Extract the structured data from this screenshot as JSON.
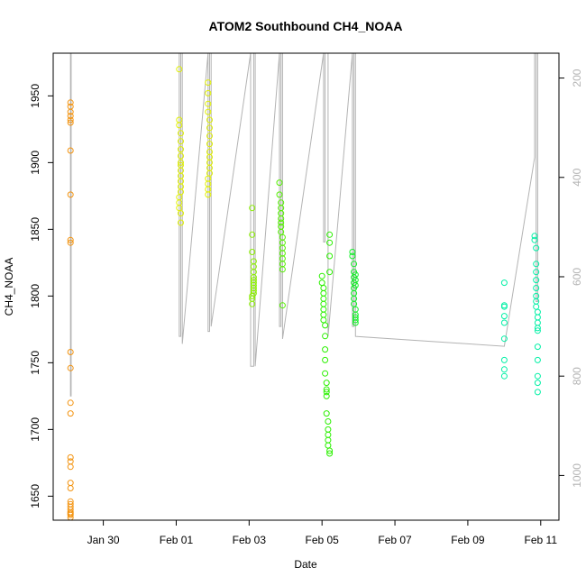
{
  "chart_data": {
    "type": "scatter",
    "title": "ATOM2 Southbound CH4_NOAA",
    "xlabel": "Date",
    "ylabel": "CH4_NOAA",
    "xlim": [
      "2017-01-28T15:00",
      "2017-02-11T12:00"
    ],
    "ylim": [
      1632,
      1982
    ],
    "y2lim": [
      1090,
      150
    ],
    "x_ticks": [
      {
        "date": "2017-01-30",
        "label": "Jan 30"
      },
      {
        "date": "2017-02-01",
        "label": "Feb 01"
      },
      {
        "date": "2017-02-03",
        "label": "Feb 03"
      },
      {
        "date": "2017-02-05",
        "label": "Feb 05"
      },
      {
        "date": "2017-02-07",
        "label": "Feb 07"
      },
      {
        "date": "2017-02-09",
        "label": "Feb 09"
      },
      {
        "date": "2017-02-11",
        "label": "Feb 11"
      }
    ],
    "y_ticks": [
      1650,
      1700,
      1750,
      1800,
      1850,
      1900,
      1950
    ],
    "y2_ticks": [
      200,
      400,
      600,
      800,
      1000
    ],
    "grid": false,
    "legend": "none",
    "pressure_line_color": "#b3b3b3",
    "series": [
      {
        "color": "#f3930f",
        "x": [
          "2017-01-29T02:24",
          "2017-01-29T02:24",
          "2017-01-29T02:24",
          "2017-01-29T02:24",
          "2017-01-29T02:24",
          "2017-01-29T02:24",
          "2017-01-29T02:24",
          "2017-01-29T02:24",
          "2017-01-29T02:24",
          "2017-01-29T02:24",
          "2017-01-29T02:24",
          "2017-01-29T02:24",
          "2017-01-29T02:24",
          "2017-01-29T02:24",
          "2017-01-29T02:24",
          "2017-01-29T02:24",
          "2017-01-29T02:24",
          "2017-01-29T02:24",
          "2017-01-29T02:24",
          "2017-01-29T02:24",
          "2017-01-29T02:24",
          "2017-01-29T02:24",
          "2017-01-29T02:24",
          "2017-01-29T02:24",
          "2017-01-29T02:24",
          "2017-01-29T02:24",
          "2017-01-29T02:24"
        ],
        "y": [
          1945,
          1942,
          1938,
          1935,
          1932,
          1930,
          1909,
          1876,
          1842,
          1840,
          1758,
          1746,
          1720,
          1712,
          1679,
          1676,
          1672,
          1660,
          1656,
          1646,
          1644,
          1642,
          1640,
          1638,
          1637,
          1636,
          1634
        ]
      },
      {
        "color": "#e0f000",
        "x": [
          "2017-02-01T02:00",
          "2017-02-01T02:00",
          "2017-02-01T02:00",
          "2017-02-01T03:00",
          "2017-02-01T03:00",
          "2017-02-01T03:00",
          "2017-02-01T03:00",
          "2017-02-01T03:00",
          "2017-02-01T03:00",
          "2017-02-01T03:00",
          "2017-02-01T03:00",
          "2017-02-01T03:00",
          "2017-02-01T03:00",
          "2017-02-01T03:00",
          "2017-02-01T02:00",
          "2017-02-01T02:00",
          "2017-02-01T02:00",
          "2017-02-01T03:00",
          "2017-02-01T03:00"
        ],
        "y": [
          1970,
          1932,
          1928,
          1922,
          1916,
          1910,
          1905,
          1900,
          1898,
          1894,
          1890,
          1886,
          1882,
          1878,
          1874,
          1870,
          1866,
          1862,
          1855
        ]
      },
      {
        "color": "#e0f000",
        "x": [
          "2017-02-01T21:00",
          "2017-02-01T21:00",
          "2017-02-01T21:00",
          "2017-02-01T21:00",
          "2017-02-01T22:00",
          "2017-02-01T22:00",
          "2017-02-01T22:00",
          "2017-02-01T22:00",
          "2017-02-01T22:00",
          "2017-02-01T22:00",
          "2017-02-01T22:00",
          "2017-02-01T22:00",
          "2017-02-01T22:00",
          "2017-02-01T21:00",
          "2017-02-01T21:00",
          "2017-02-01T21:00",
          "2017-02-01T21:00"
        ],
        "y": [
          1960,
          1952,
          1944,
          1938,
          1932,
          1926,
          1920,
          1914,
          1908,
          1904,
          1900,
          1896,
          1892,
          1888,
          1884,
          1880,
          1876
        ]
      },
      {
        "color": "#8bf000",
        "x": [
          "2017-02-03T02:00",
          "2017-02-03T02:00",
          "2017-02-03T02:00",
          "2017-02-03T03:00",
          "2017-02-03T03:00",
          "2017-02-03T03:00",
          "2017-02-03T03:00",
          "2017-02-03T03:00",
          "2017-02-03T03:00",
          "2017-02-03T03:00",
          "2017-02-03T03:00",
          "2017-02-03T03:00",
          "2017-02-03T03:00",
          "2017-02-03T02:00",
          "2017-02-03T02:00",
          "2017-02-03T02:00"
        ],
        "y": [
          1866,
          1846,
          1833,
          1826,
          1822,
          1818,
          1814,
          1812,
          1810,
          1808,
          1806,
          1804,
          1802,
          1800,
          1798,
          1794
        ]
      },
      {
        "color": "#54f000",
        "x": [
          "2017-02-03T20:00",
          "2017-02-03T20:00",
          "2017-02-03T21:00",
          "2017-02-03T21:00",
          "2017-02-03T21:00",
          "2017-02-03T21:00",
          "2017-02-03T21:00",
          "2017-02-03T21:00",
          "2017-02-03T21:00",
          "2017-02-03T22:00",
          "2017-02-03T22:00",
          "2017-02-03T22:00",
          "2017-02-03T22:00",
          "2017-02-03T22:00",
          "2017-02-03T22:00",
          "2017-02-03T22:00",
          "2017-02-03T22:00"
        ],
        "y": [
          1885,
          1876,
          1870,
          1866,
          1862,
          1858,
          1855,
          1852,
          1848,
          1844,
          1840,
          1836,
          1832,
          1828,
          1824,
          1820,
          1793
        ]
      },
      {
        "color": "#2bf000",
        "x": [
          "2017-02-05T00:00",
          "2017-02-05T00:00",
          "2017-02-05T01:00",
          "2017-02-05T01:00",
          "2017-02-05T01:00",
          "2017-02-05T01:00",
          "2017-02-05T01:00",
          "2017-02-05T01:00",
          "2017-02-05T01:00",
          "2017-02-05T02:00",
          "2017-02-05T02:00",
          "2017-02-05T02:00",
          "2017-02-05T02:00",
          "2017-02-05T02:00",
          "2017-02-05T03:00",
          "2017-02-05T03:00",
          "2017-02-05T03:00",
          "2017-02-05T03:00",
          "2017-02-05T03:00",
          "2017-02-05T04:00",
          "2017-02-05T04:00",
          "2017-02-05T04:00",
          "2017-02-05T04:00",
          "2017-02-05T04:00",
          "2017-02-05T05:00",
          "2017-02-05T05:00",
          "2017-02-05T05:00",
          "2017-02-05T05:00",
          "2017-02-05T05:00",
          "2017-02-05T05:00"
        ],
        "y": [
          1815,
          1810,
          1806,
          1802,
          1798,
          1794,
          1790,
          1786,
          1782,
          1778,
          1770,
          1760,
          1752,
          1742,
          1735,
          1730,
          1728,
          1725,
          1712,
          1706,
          1700,
          1696,
          1692,
          1688,
          1684,
          1682,
          1846,
          1840,
          1830,
          1818
        ]
      },
      {
        "color": "#12f028",
        "x": [
          "2017-02-05T20:00",
          "2017-02-05T20:00",
          "2017-02-05T21:00",
          "2017-02-05T21:00",
          "2017-02-05T21:00",
          "2017-02-05T21:00",
          "2017-02-05T21:00",
          "2017-02-05T21:00",
          "2017-02-05T21:00",
          "2017-02-05T21:00",
          "2017-02-05T22:00",
          "2017-02-05T22:00",
          "2017-02-05T22:00",
          "2017-02-05T22:00",
          "2017-02-05T22:00",
          "2017-02-05T22:00",
          "2017-02-05T22:00",
          "2017-02-05T22:00"
        ],
        "y": [
          1833,
          1830,
          1824,
          1818,
          1814,
          1810,
          1806,
          1802,
          1798,
          1794,
          1790,
          1786,
          1784,
          1782,
          1780,
          1816,
          1812,
          1808
        ]
      },
      {
        "color": "#00f0a5",
        "x": [
          "2017-02-10T00:00",
          "2017-02-10T00:00",
          "2017-02-10T00:00",
          "2017-02-10T00:00",
          "2017-02-10T00:00",
          "2017-02-10T00:00",
          "2017-02-10T00:00",
          "2017-02-10T00:00",
          "2017-02-10T00:00"
        ],
        "y": [
          1810,
          1793,
          1792,
          1785,
          1780,
          1768,
          1752,
          1745,
          1740
        ]
      },
      {
        "color": "#00f0a5",
        "x": [
          "2017-02-10T20:00",
          "2017-02-10T20:00",
          "2017-02-10T21:00",
          "2017-02-10T21:00",
          "2017-02-10T21:00",
          "2017-02-10T21:00",
          "2017-02-10T21:00",
          "2017-02-10T21:00",
          "2017-02-10T21:00",
          "2017-02-10T21:00",
          "2017-02-10T22:00",
          "2017-02-10T22:00",
          "2017-02-10T22:00",
          "2017-02-10T22:00",
          "2017-02-10T22:00",
          "2017-02-10T22:00",
          "2017-02-10T22:00",
          "2017-02-10T22:00",
          "2017-02-10T22:00",
          "2017-02-10T22:00"
        ],
        "y": [
          1845,
          1842,
          1836,
          1824,
          1818,
          1812,
          1806,
          1800,
          1796,
          1792,
          1788,
          1784,
          1780,
          1776,
          1774,
          1762,
          1752,
          1740,
          1735,
          1728
        ]
      }
    ],
    "pressure_path": {
      "x": [
        "2017-01-29T02:24",
        "2017-01-29T02:24",
        "2017-01-29T02:48",
        "2017-01-29T02:48",
        "2017-02-01T02:00",
        "2017-02-01T02:00",
        "2017-02-01T03:00",
        "2017-02-01T03:00",
        "2017-02-01T04:00",
        "2017-02-01T04:00",
        "2017-02-01T21:00",
        "2017-02-01T21:00",
        "2017-02-01T22:00",
        "2017-02-01T22:00",
        "2017-02-01T23:00",
        "2017-02-01T23:00",
        "2017-02-03T01:00",
        "2017-02-03T01:00",
        "2017-02-03T03:00",
        "2017-02-03T03:00",
        "2017-02-03T04:00",
        "2017-02-03T04:00",
        "2017-02-03T20:00",
        "2017-02-03T20:00",
        "2017-02-03T21:00",
        "2017-02-03T21:00",
        "2017-02-03T22:00",
        "2017-02-03T22:00",
        "2017-02-05T01:00",
        "2017-02-05T01:00",
        "2017-02-05T02:00",
        "2017-02-05T02:00",
        "2017-02-05T04:00",
        "2017-02-05T04:00",
        "2017-02-05T20:00",
        "2017-02-05T20:00",
        "2017-02-05T21:00",
        "2017-02-05T21:00",
        "2017-02-05T22:00",
        "2017-02-05T22:00",
        "2017-02-10T00:00",
        "2017-02-10T20:00",
        "2017-02-10T20:00",
        "2017-02-10T21:00",
        "2017-02-10T21:00",
        "2017-02-10T22:00",
        "2017-02-10T22:00"
      ],
      "p": [
        150,
        840,
        840,
        150,
        150,
        720,
        720,
        150,
        150,
        735,
        150,
        710,
        710,
        150,
        150,
        700,
        150,
        780,
        780,
        150,
        150,
        780,
        150,
        700,
        700,
        150,
        150,
        725,
        150,
        530,
        530,
        150,
        150,
        720,
        150,
        700,
        700,
        150,
        150,
        720,
        740,
        360,
        150,
        150,
        650,
        650,
        150
      ]
    }
  }
}
